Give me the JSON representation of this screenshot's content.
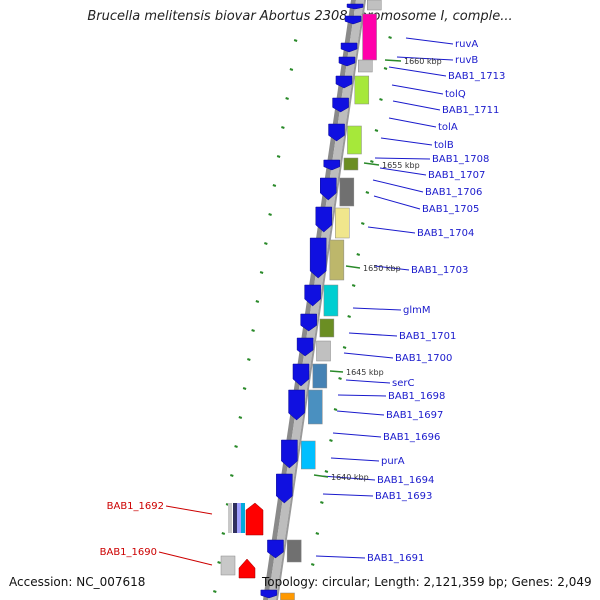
{
  "header": {
    "title": "Brucella melitensis biovar Abortus 2308 chromosome I, comple..."
  },
  "footer": {
    "accession": "Accession: NC_007618",
    "topology": "Topology: circular; Length: 2,121,359 bp; Genes: 2,049"
  },
  "colors": {
    "forward_gene": "#1010e0",
    "reverse_label_color": "#cc0000",
    "label_color": "#1a1acc",
    "backbone": "#a9a9a9",
    "tick_green": "#2a8a2a"
  },
  "kbp_marks": [
    "1660 kbp",
    "1655 kbp",
    "1650 kbp",
    "1645 kbp",
    "1640 kbp"
  ],
  "right_labels": [
    "ruvA",
    "ruvB",
    "BAB1_1713",
    "tolQ",
    "BAB1_1711",
    "tolA",
    "tolB",
    "BAB1_1708",
    "BAB1_1707",
    "BAB1_1706",
    "BAB1_1705",
    "BAB1_1704",
    "BAB1_1703",
    "glmM",
    "BAB1_1701",
    "BAB1_1700",
    "serC",
    "BAB1_1698",
    "BAB1_1697",
    "BAB1_1696",
    "purA",
    "BAB1_1694",
    "BAB1_1693",
    "BAB1_1691"
  ],
  "left_labels": [
    "BAB1_1692",
    "BAB1_1690"
  ]
}
